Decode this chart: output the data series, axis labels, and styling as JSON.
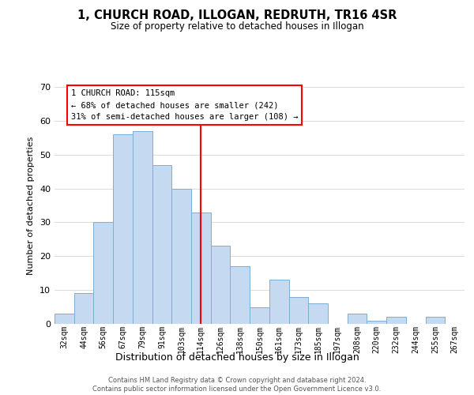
{
  "title": "1, CHURCH ROAD, ILLOGAN, REDRUTH, TR16 4SR",
  "subtitle": "Size of property relative to detached houses in Illogan",
  "xlabel": "Distribution of detached houses by size in Illogan",
  "ylabel": "Number of detached properties",
  "bar_labels": [
    "32sqm",
    "44sqm",
    "56sqm",
    "67sqm",
    "79sqm",
    "91sqm",
    "103sqm",
    "114sqm",
    "126sqm",
    "138sqm",
    "150sqm",
    "161sqm",
    "173sqm",
    "185sqm",
    "197sqm",
    "208sqm",
    "220sqm",
    "232sqm",
    "244sqm",
    "255sqm",
    "267sqm"
  ],
  "bar_values": [
    3,
    9,
    30,
    56,
    57,
    47,
    40,
    33,
    23,
    17,
    5,
    13,
    8,
    6,
    0,
    3,
    1,
    2,
    0,
    2,
    0
  ],
  "bar_color": "#c5d9f1",
  "bar_edgecolor": "#7bafd4",
  "property_line_x": 7,
  "ylim": [
    0,
    70
  ],
  "yticks": [
    0,
    10,
    20,
    30,
    40,
    50,
    60,
    70
  ],
  "annotation_title": "1 CHURCH ROAD: 115sqm",
  "annotation_line1": "← 68% of detached houses are smaller (242)",
  "annotation_line2": "31% of semi-detached houses are larger (108) →",
  "footer_line1": "Contains HM Land Registry data © Crown copyright and database right 2024.",
  "footer_line2": "Contains public sector information licensed under the Open Government Licence v3.0.",
  "background_color": "#ffffff",
  "grid_color": "#dddddd"
}
